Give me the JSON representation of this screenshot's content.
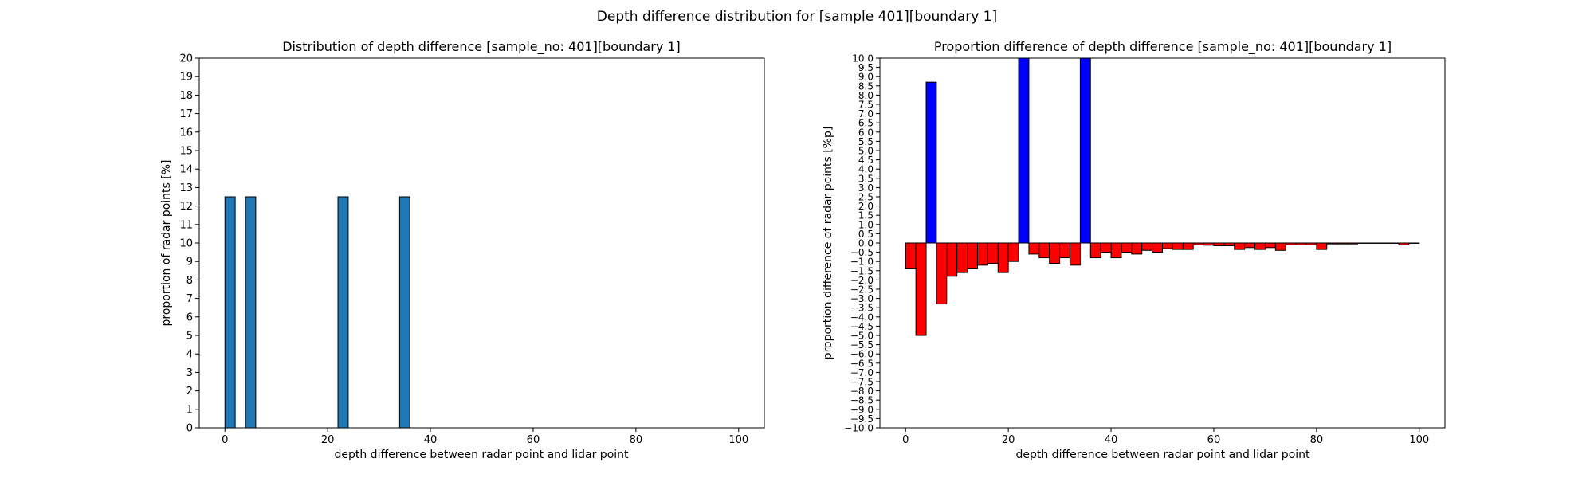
{
  "figure": {
    "suptitle": "Depth difference distribution for [sample 401][boundary 1]"
  },
  "chart_data": [
    {
      "type": "bar",
      "title": "Distribution of depth difference [sample_no: 401][boundary 1]",
      "xlabel": "depth difference between radar point and lidar point",
      "ylabel": "proportion of radar points [%]",
      "xlim": [
        -5,
        105
      ],
      "ylim": [
        0,
        20
      ],
      "xticks": [
        "0",
        "20",
        "40",
        "60",
        "80",
        "100"
      ],
      "yticks": [
        "0",
        "1",
        "2",
        "3",
        "4",
        "5",
        "6",
        "7",
        "8",
        "9",
        "10",
        "11",
        "12",
        "13",
        "14",
        "15",
        "16",
        "17",
        "18",
        "19",
        "20"
      ],
      "bin_width": 2,
      "bin_starts": [
        0,
        4,
        22,
        34
      ],
      "values": [
        12.5,
        12.5,
        12.5,
        12.5
      ],
      "bar_color": "#1f77b4",
      "edge_color": "#000000",
      "grid": false
    },
    {
      "type": "bar",
      "title": "Proportion difference of depth difference [sample_no: 401][boundary 1]",
      "xlabel": "depth difference between radar point and lidar point",
      "ylabel": "proportion difference of radar points [%p]",
      "xlim": [
        -5,
        105
      ],
      "ylim": [
        -10,
        10
      ],
      "xticks": [
        "0",
        "20",
        "40",
        "60",
        "80",
        "100"
      ],
      "yticks": [
        "−10.0",
        "−9.5",
        "−9.0",
        "−8.5",
        "−8.0",
        "−7.5",
        "−7.0",
        "−6.5",
        "−6.0",
        "−5.5",
        "−5.0",
        "−4.5",
        "−4.0",
        "−3.5",
        "−3.0",
        "−2.5",
        "−2.0",
        "−1.5",
        "−1.0",
        "−0.5",
        "0.0",
        "0.5",
        "1.0",
        "1.5",
        "2.0",
        "2.5",
        "3.0",
        "3.5",
        "4.0",
        "4.5",
        "5.0",
        "5.5",
        "6.0",
        "6.5",
        "7.0",
        "7.5",
        "8.0",
        "8.5",
        "9.0",
        "9.5",
        "10.0"
      ],
      "bin_width": 2,
      "bin_starts": [
        0,
        2,
        4,
        6,
        8,
        10,
        12,
        14,
        16,
        18,
        20,
        22,
        24,
        26,
        28,
        30,
        32,
        34,
        36,
        38,
        40,
        42,
        44,
        46,
        48,
        50,
        52,
        54,
        56,
        58,
        60,
        62,
        64,
        66,
        68,
        70,
        72,
        74,
        76,
        78,
        80,
        82,
        84,
        86,
        88,
        90,
        92,
        94,
        96,
        98
      ],
      "values": [
        -1.4,
        -5.0,
        8.7,
        -3.3,
        -1.8,
        -1.6,
        -1.4,
        -1.2,
        -1.1,
        -1.6,
        -1.0,
        10.5,
        -0.6,
        -0.8,
        -1.1,
        -0.8,
        -1.2,
        10.5,
        -0.8,
        -0.5,
        -0.8,
        -0.5,
        -0.6,
        -0.4,
        -0.5,
        -0.3,
        -0.35,
        -0.35,
        -0.1,
        -0.12,
        -0.15,
        -0.15,
        -0.35,
        -0.25,
        -0.35,
        -0.25,
        -0.4,
        -0.1,
        -0.1,
        -0.1,
        -0.35,
        -0.05,
        -0.05,
        -0.05,
        -0.02,
        -0.02,
        -0.02,
        -0.02,
        -0.1,
        -0.02
      ],
      "positive_color": "#0000ff",
      "negative_color": "#ff0000",
      "edge_color": "#000000",
      "grid": false
    }
  ]
}
